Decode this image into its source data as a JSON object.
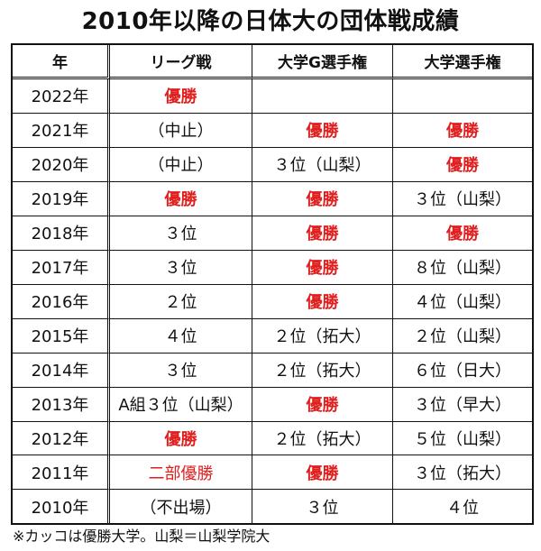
{
  "title": "2010年以降の日体大の団体戦成績",
  "columns": [
    "年",
    "リーグ戦",
    "大学G選手権",
    "大学選手権"
  ],
  "rows": [
    {
      "year": "2022年",
      "league": {
        "text": "優勝",
        "style": "win"
      },
      "group": {
        "text": "",
        "style": "normal"
      },
      "champ": {
        "text": "",
        "style": "normal"
      }
    },
    {
      "year": "2021年",
      "league": {
        "text": "（中止）",
        "style": "normal"
      },
      "group": {
        "text": "優勝",
        "style": "win"
      },
      "champ": {
        "text": "優勝",
        "style": "win"
      }
    },
    {
      "year": "2020年",
      "league": {
        "text": "（中止）",
        "style": "normal"
      },
      "group": {
        "text": "３位（山梨）",
        "style": "normal"
      },
      "champ": {
        "text": "優勝",
        "style": "win"
      }
    },
    {
      "year": "2019年",
      "league": {
        "text": "優勝",
        "style": "win"
      },
      "group": {
        "text": "優勝",
        "style": "win"
      },
      "champ": {
        "text": "３位（山梨）",
        "style": "normal"
      }
    },
    {
      "year": "2018年",
      "league": {
        "text": "３位",
        "style": "normal"
      },
      "group": {
        "text": "優勝",
        "style": "win"
      },
      "champ": {
        "text": "優勝",
        "style": "win"
      }
    },
    {
      "year": "2017年",
      "league": {
        "text": "３位",
        "style": "normal"
      },
      "group": {
        "text": "優勝",
        "style": "win"
      },
      "champ": {
        "text": "８位（山梨）",
        "style": "normal"
      }
    },
    {
      "year": "2016年",
      "league": {
        "text": "２位",
        "style": "normal"
      },
      "group": {
        "text": "優勝",
        "style": "win"
      },
      "champ": {
        "text": "４位（山梨）",
        "style": "normal"
      }
    },
    {
      "year": "2015年",
      "league": {
        "text": "４位",
        "style": "normal"
      },
      "group": {
        "text": "２位（拓大）",
        "style": "normal"
      },
      "champ": {
        "text": "２位（山梨）",
        "style": "normal"
      }
    },
    {
      "year": "2014年",
      "league": {
        "text": "３位",
        "style": "normal"
      },
      "group": {
        "text": "２位（拓大）",
        "style": "normal"
      },
      "champ": {
        "text": "６位（日大）",
        "style": "normal"
      }
    },
    {
      "year": "2013年",
      "league": {
        "text": "A組３位（山梨）",
        "style": "normal"
      },
      "group": {
        "text": "優勝",
        "style": "win"
      },
      "champ": {
        "text": "３位（早大）",
        "style": "normal"
      }
    },
    {
      "year": "2012年",
      "league": {
        "text": "優勝",
        "style": "win"
      },
      "group": {
        "text": "２位（拓大）",
        "style": "normal"
      },
      "champ": {
        "text": "５位（山梨）",
        "style": "normal"
      }
    },
    {
      "year": "2011年",
      "league": {
        "text": "二部優勝",
        "style": "win-sub"
      },
      "group": {
        "text": "優勝",
        "style": "win"
      },
      "champ": {
        "text": "３位（拓大）",
        "style": "normal"
      }
    },
    {
      "year": "2010年",
      "league": {
        "text": "（不出場）",
        "style": "normal"
      },
      "group": {
        "text": "３位",
        "style": "normal"
      },
      "champ": {
        "text": "４位",
        "style": "normal"
      }
    }
  ],
  "footnote": "※カッコは優勝大学。山梨＝山梨学院大",
  "colors": {
    "win": "#e01e1e",
    "text": "#111111",
    "background": "#ffffff"
  }
}
